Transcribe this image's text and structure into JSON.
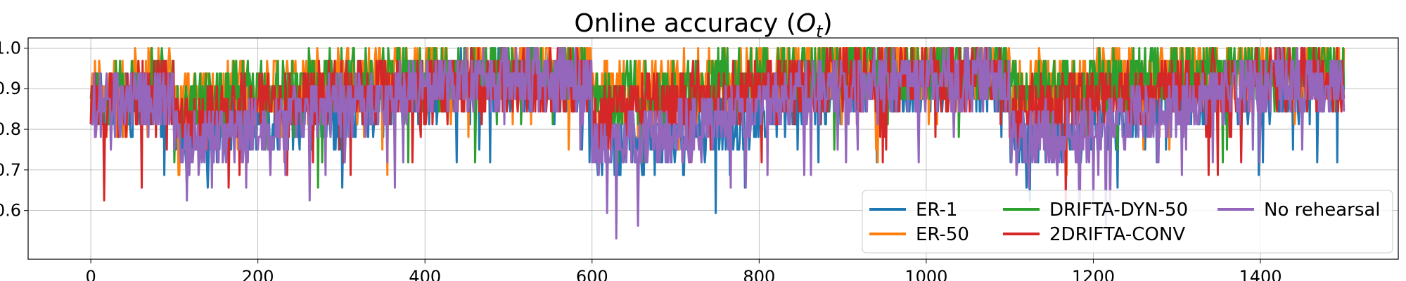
{
  "chart_data": {
    "type": "line",
    "title": "Online accuracy (",
    "title_symbol": "O",
    "title_subscript": "t",
    "title_close": ")",
    "xlabel": "",
    "ylabel": "",
    "xlim": [
      -75,
      1565
    ],
    "ylim": [
      0.48,
      1.025
    ],
    "x_ticks": [
      0,
      200,
      400,
      600,
      800,
      1000,
      1200,
      1400
    ],
    "x_tick_labels": [
      "0",
      "200",
      "400",
      "600",
      "800",
      "1000",
      "1200",
      "1400"
    ],
    "y_ticks": [
      0.6,
      0.7,
      0.8,
      0.9,
      1.0
    ],
    "y_tick_labels": [
      "0.6",
      "0.7",
      "0.8",
      "0.9",
      "1.0"
    ],
    "grid": true,
    "legend_position": "lower-right",
    "legend_columns": 3,
    "x_range": [
      0,
      1500
    ],
    "series": [
      {
        "name": "ER-1",
        "color": "#1f77b4",
        "mean": [
          [
            0,
            0.87
          ],
          [
            100,
            0.86
          ],
          [
            100,
            0.78
          ],
          [
            200,
            0.82
          ],
          [
            300,
            0.84
          ],
          [
            350,
            0.88
          ],
          [
            400,
            0.9
          ],
          [
            500,
            0.93
          ],
          [
            600,
            0.91
          ],
          [
            600,
            0.76
          ],
          [
            700,
            0.79
          ],
          [
            800,
            0.84
          ],
          [
            900,
            0.9
          ],
          [
            1000,
            0.92
          ],
          [
            1100,
            0.91
          ],
          [
            1100,
            0.78
          ],
          [
            1200,
            0.82
          ],
          [
            1300,
            0.88
          ],
          [
            1400,
            0.9
          ],
          [
            1500,
            0.91
          ]
        ]
      },
      {
        "name": "ER-50",
        "color": "#ff7f0e",
        "mean": [
          [
            0,
            0.88
          ],
          [
            100,
            0.93
          ],
          [
            100,
            0.86
          ],
          [
            200,
            0.9
          ],
          [
            300,
            0.92
          ],
          [
            400,
            0.93
          ],
          [
            500,
            0.95
          ],
          [
            600,
            0.95
          ],
          [
            600,
            0.88
          ],
          [
            700,
            0.91
          ],
          [
            800,
            0.93
          ],
          [
            900,
            0.95
          ],
          [
            1000,
            0.95
          ],
          [
            1100,
            0.95
          ],
          [
            1100,
            0.9
          ],
          [
            1200,
            0.92
          ],
          [
            1300,
            0.94
          ],
          [
            1400,
            0.95
          ],
          [
            1500,
            0.95
          ]
        ]
      },
      {
        "name": "DRIFTA-DYN-50",
        "color": "#2ca02c",
        "mean": [
          [
            0,
            0.87
          ],
          [
            100,
            0.93
          ],
          [
            100,
            0.85
          ],
          [
            200,
            0.89
          ],
          [
            300,
            0.92
          ],
          [
            400,
            0.93
          ],
          [
            500,
            0.94
          ],
          [
            600,
            0.94
          ],
          [
            600,
            0.87
          ],
          [
            700,
            0.9
          ],
          [
            800,
            0.93
          ],
          [
            900,
            0.94
          ],
          [
            1000,
            0.95
          ],
          [
            1100,
            0.94
          ],
          [
            1100,
            0.89
          ],
          [
            1200,
            0.92
          ],
          [
            1300,
            0.93
          ],
          [
            1400,
            0.95
          ],
          [
            1500,
            0.95
          ]
        ]
      },
      {
        "name": "2DRIFTA-CONV",
        "color": "#d62728",
        "mean": [
          [
            0,
            0.86
          ],
          [
            100,
            0.9
          ],
          [
            100,
            0.81
          ],
          [
            200,
            0.86
          ],
          [
            300,
            0.89
          ],
          [
            400,
            0.9
          ],
          [
            500,
            0.92
          ],
          [
            600,
            0.92
          ],
          [
            600,
            0.83
          ],
          [
            700,
            0.87
          ],
          [
            800,
            0.9
          ],
          [
            900,
            0.92
          ],
          [
            1000,
            0.93
          ],
          [
            1100,
            0.92
          ],
          [
            1100,
            0.84
          ],
          [
            1200,
            0.87
          ],
          [
            1300,
            0.9
          ],
          [
            1400,
            0.92
          ],
          [
            1500,
            0.93
          ]
        ]
      },
      {
        "name": "No rehearsal",
        "color": "#9467bd",
        "mean": [
          [
            0,
            0.85
          ],
          [
            100,
            0.89
          ],
          [
            100,
            0.77
          ],
          [
            200,
            0.81
          ],
          [
            300,
            0.86
          ],
          [
            400,
            0.9
          ],
          [
            500,
            0.93
          ],
          [
            600,
            0.92
          ],
          [
            600,
            0.75
          ],
          [
            700,
            0.79
          ],
          [
            800,
            0.86
          ],
          [
            900,
            0.91
          ],
          [
            1000,
            0.93
          ],
          [
            1100,
            0.92
          ],
          [
            1100,
            0.77
          ],
          [
            1200,
            0.8
          ],
          [
            1300,
            0.86
          ],
          [
            1400,
            0.91
          ],
          [
            1500,
            0.92
          ]
        ]
      }
    ]
  }
}
